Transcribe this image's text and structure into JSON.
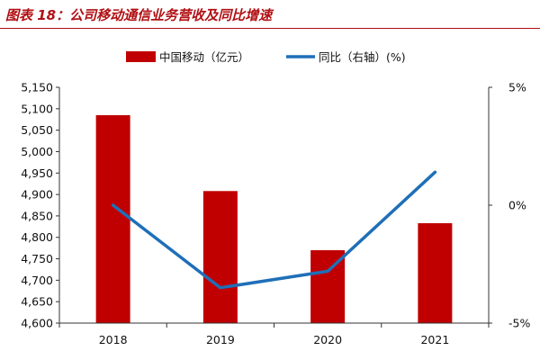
{
  "figure_title": "图表 18：公司移动通信业务营收及同比增速",
  "chart_data": {
    "type": "bar",
    "categories": [
      "2018",
      "2019",
      "2020",
      "2021"
    ],
    "series": [
      {
        "name": "中国移动（亿元）",
        "kind": "bar",
        "axis": "left",
        "color": "#c00000",
        "values": [
          5085,
          4908,
          4770,
          4833
        ]
      },
      {
        "name": "同比（右轴）(%)",
        "kind": "line",
        "axis": "right",
        "color": "#1f6fb8",
        "values": [
          0.0,
          -3.5,
          -2.8,
          1.4
        ]
      }
    ],
    "left_axis": {
      "min": 4600,
      "max": 5150,
      "ticks": [
        4600,
        4650,
        4700,
        4750,
        4800,
        4850,
        4900,
        4950,
        5000,
        5050,
        5100,
        5150
      ],
      "tick_labels": [
        "4,600",
        "4,650",
        "4,700",
        "4,750",
        "4,800",
        "4,850",
        "4,900",
        "4,950",
        "5,000",
        "5,050",
        "5,100",
        "5,150"
      ]
    },
    "right_axis": {
      "min": -5,
      "max": 5,
      "ticks": [
        -5,
        0,
        5
      ],
      "tick_labels": [
        "-5%",
        "0%",
        "5%"
      ]
    },
    "legend_position": "top-center",
    "grid": false
  }
}
